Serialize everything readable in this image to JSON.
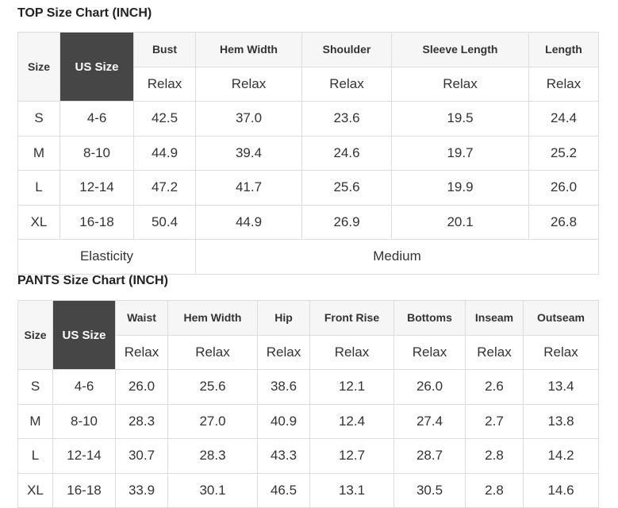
{
  "top": {
    "title": "TOP Size Chart (INCH)",
    "size_header": "Size",
    "us_header": "US Size",
    "columns": [
      "Bust",
      "Hem Width",
      "Shoulder",
      "Sleeve Length",
      "Length"
    ],
    "sub": "Relax",
    "rows": [
      {
        "size": "S",
        "us": "4-6",
        "values": [
          "42.5",
          "37.0",
          "23.6",
          "19.5",
          "24.4"
        ]
      },
      {
        "size": "M",
        "us": "8-10",
        "values": [
          "44.9",
          "39.4",
          "24.6",
          "19.7",
          "25.2"
        ]
      },
      {
        "size": "L",
        "us": "12-14",
        "values": [
          "47.2",
          "41.7",
          "25.6",
          "19.9",
          "26.0"
        ]
      },
      {
        "size": "XL",
        "us": "16-18",
        "values": [
          "50.4",
          "44.9",
          "26.9",
          "20.1",
          "26.8"
        ]
      }
    ],
    "elasticity_label": "Elasticity",
    "elasticity_value": "Medium"
  },
  "pants": {
    "title": "PANTS Size Chart (INCH)",
    "size_header": "Size",
    "us_header": "US Size",
    "columns": [
      "Waist",
      "Hem Width",
      "Hip",
      "Front Rise",
      "Bottoms",
      "Inseam",
      "Outseam"
    ],
    "sub": "Relax",
    "rows": [
      {
        "size": "S",
        "us": "4-6",
        "values": [
          "26.0",
          "25.6",
          "38.6",
          "12.1",
          "26.0",
          "2.6",
          "13.4"
        ]
      },
      {
        "size": "M",
        "us": "8-10",
        "values": [
          "28.3",
          "27.0",
          "40.9",
          "12.4",
          "27.4",
          "2.7",
          "13.8"
        ]
      },
      {
        "size": "L",
        "us": "12-14",
        "values": [
          "30.7",
          "28.3",
          "43.3",
          "12.7",
          "28.7",
          "2.8",
          "14.2"
        ]
      },
      {
        "size": "XL",
        "us": "16-18",
        "values": [
          "33.9",
          "30.1",
          "46.5",
          "13.1",
          "30.5",
          "2.8",
          "14.6"
        ]
      }
    ]
  }
}
